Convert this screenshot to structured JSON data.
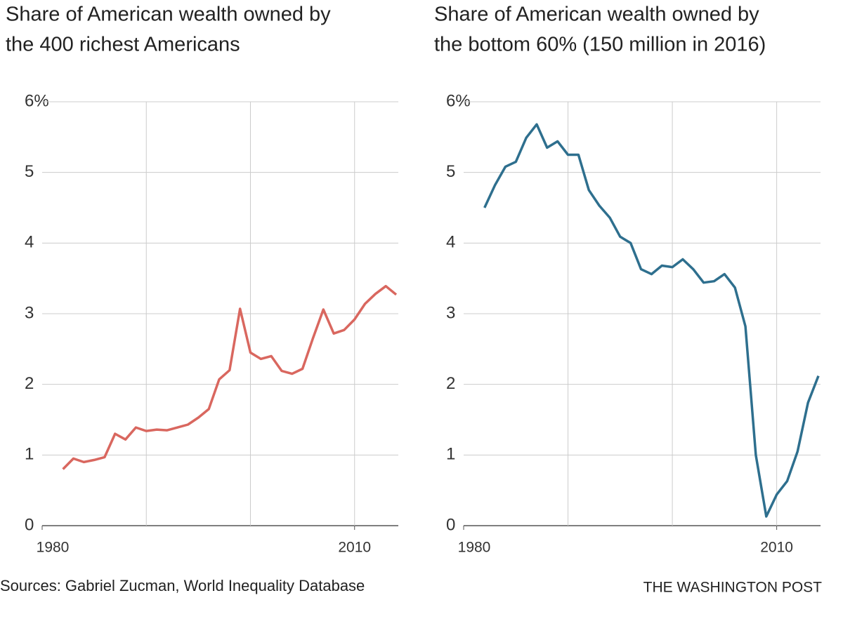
{
  "chart_data": [
    {
      "type": "line",
      "title": [
        "Share of American wealth owned by",
        "the 400 richest Americans"
      ],
      "x": [
        1982,
        1983,
        1984,
        1985,
        1986,
        1987,
        1988,
        1989,
        1990,
        1991,
        1992,
        1993,
        1994,
        1995,
        1996,
        1997,
        1998,
        1999,
        2000,
        2001,
        2002,
        2003,
        2004,
        2005,
        2006,
        2007,
        2008,
        2009,
        2010,
        2011,
        2012,
        2013,
        2014
      ],
      "series": [
        {
          "name": "400 richest Americans",
          "color": "#d9675f",
          "values": [
            0.8,
            0.95,
            0.9,
            0.93,
            0.97,
            1.3,
            1.22,
            1.39,
            1.34,
            1.36,
            1.35,
            1.39,
            1.43,
            1.53,
            1.65,
            2.07,
            2.2,
            3.07,
            2.45,
            2.36,
            2.4,
            2.19,
            2.15,
            2.22,
            2.65,
            3.06,
            2.72,
            2.77,
            2.92,
            3.14,
            3.28,
            3.39,
            3.27
          ]
        }
      ],
      "xlim": [
        1980,
        2014.2
      ],
      "xticks": [
        1980,
        2010
      ],
      "xgrid": [
        1990,
        2000,
        2010
      ],
      "ylim": [
        0,
        6
      ],
      "yticks": [
        0,
        1,
        2,
        3,
        4,
        5,
        {
          "value": 6,
          "label": "6%"
        }
      ],
      "grid": true
    },
    {
      "type": "line",
      "title": [
        "Share of American wealth owned by",
        "the bottom 60% (150 million in 2016)"
      ],
      "x": [
        1982,
        1983,
        1984,
        1985,
        1986,
        1987,
        1988,
        1989,
        1990,
        1991,
        1992,
        1993,
        1994,
        1995,
        1996,
        1997,
        1998,
        1999,
        2000,
        2001,
        2002,
        2003,
        2004,
        2005,
        2006,
        2007,
        2008,
        2009,
        2010,
        2011,
        2012,
        2013,
        2014
      ],
      "series": [
        {
          "name": "bottom 60%",
          "color": "#2e6f8e",
          "values": [
            4.5,
            4.82,
            5.08,
            5.15,
            5.49,
            5.68,
            5.35,
            5.44,
            5.25,
            5.25,
            4.75,
            4.53,
            4.36,
            4.09,
            4.0,
            3.63,
            3.56,
            3.68,
            3.66,
            3.77,
            3.63,
            3.44,
            3.46,
            3.56,
            3.37,
            2.82,
            1.0,
            0.13,
            0.44,
            0.63,
            1.05,
            1.74,
            2.12
          ]
        }
      ],
      "xlim": [
        1980,
        2014.2
      ],
      "xticks": [
        1980,
        2010
      ],
      "xgrid": [
        1990,
        2000,
        2010
      ],
      "ylim": [
        0,
        6
      ],
      "yticks": [
        0,
        1,
        2,
        3,
        4,
        5,
        {
          "value": 6,
          "label": "6%"
        }
      ],
      "grid": true
    }
  ],
  "source": "Sources: Gabriel Zucman, World Inequality Database",
  "credit": "THE WASHINGTON POST"
}
